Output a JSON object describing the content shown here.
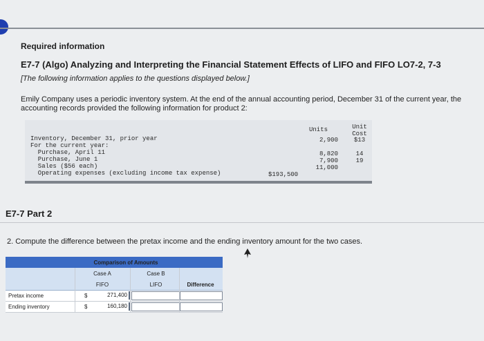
{
  "header": {
    "required_info": "Required information",
    "title": "E7-7 (Algo) Analyzing and Interpreting the Financial Statement Effects of LIFO and FIFO LO7-2, 7-3",
    "subtitle": "[The following information applies to the questions displayed below.]",
    "paragraph": "Emily Company uses a periodic inventory system. At the end of the annual accounting period, December 31 of the current year, the accounting records provided the following information for product 2:"
  },
  "info_table": {
    "col_units": "Units",
    "col_unit_cost": "Unit Cost",
    "rows": [
      {
        "label": "Inventory, December 31, prior year",
        "units": "2,900",
        "unit_cost": "$13"
      },
      {
        "label": "For the current year:",
        "units": "",
        "unit_cost": ""
      },
      {
        "label": "  Purchase, April 11",
        "units": "8,820",
        "unit_cost": "14"
      },
      {
        "label": "  Purchase, June 1",
        "units": "7,900",
        "unit_cost": "19"
      },
      {
        "label": "  Sales ($56 each)",
        "units": "11,000",
        "unit_cost": ""
      },
      {
        "label": "  Operating expenses (excluding income tax expense)",
        "amount": "$193,500"
      }
    ]
  },
  "part": {
    "heading": "E7-7 Part 2",
    "question": "2. Compute the difference between the pretax income and the ending inventory amount for the two cases."
  },
  "comparison": {
    "title": "Comparison of Amounts",
    "case_a": "Case A",
    "case_b": "Case B",
    "fifo": "FIFO",
    "lifo": "LIFO",
    "difference": "Difference",
    "rows": [
      {
        "label": "Pretax income",
        "currency": "$",
        "fifo_value": "271,400",
        "lifo_value": "",
        "difference_value": ""
      },
      {
        "label": "Ending inventory",
        "currency": "$",
        "fifo_value": "160,180",
        "lifo_value": "",
        "difference_value": ""
      }
    ]
  }
}
